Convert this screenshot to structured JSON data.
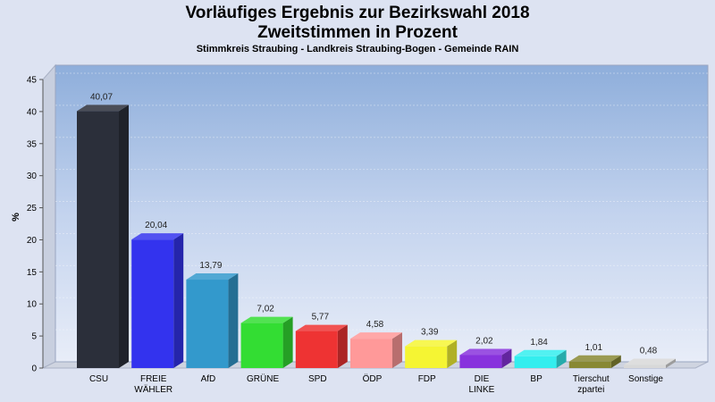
{
  "chart_data": {
    "type": "bar",
    "title_line1": "Vorläufiges Ergebnis zur Bezirkswahl 2018",
    "title_line2": "Zweitstimmen in Prozent",
    "subtitle": "Stimmkreis Straubing - Landkreis Straubing-Bogen - Gemeinde RAIN",
    "ylabel": "%",
    "ylim": [
      0,
      45
    ],
    "yticks": [
      0,
      5,
      10,
      15,
      20,
      25,
      30,
      35,
      40,
      45
    ],
    "grid": true,
    "categories": [
      [
        "CSU"
      ],
      [
        "FREIE",
        "WÄHLER"
      ],
      [
        "AfD"
      ],
      [
        "GRÜNE"
      ],
      [
        "SPD"
      ],
      [
        "ÖDP"
      ],
      [
        "FDP"
      ],
      [
        "DIE",
        "LINKE"
      ],
      [
        "BP"
      ],
      [
        "Tierschut",
        "zpartei"
      ],
      [
        "Sonstige"
      ]
    ],
    "values": [
      40.07,
      20.04,
      13.79,
      7.02,
      5.77,
      4.58,
      3.39,
      2.02,
      1.84,
      1.01,
      0.48
    ],
    "value_labels": [
      "40,07",
      "20,04",
      "13,79",
      "7,02",
      "5,77",
      "4,58",
      "3,39",
      "2,02",
      "1,84",
      "1,01",
      "0,48"
    ],
    "colors": [
      "#2b2f3a",
      "#3333ee",
      "#3399cc",
      "#33dd33",
      "#ee3333",
      "#ff9999",
      "#f5f533",
      "#8833dd",
      "#33eeee",
      "#888833",
      "#d8d8d8"
    ]
  }
}
